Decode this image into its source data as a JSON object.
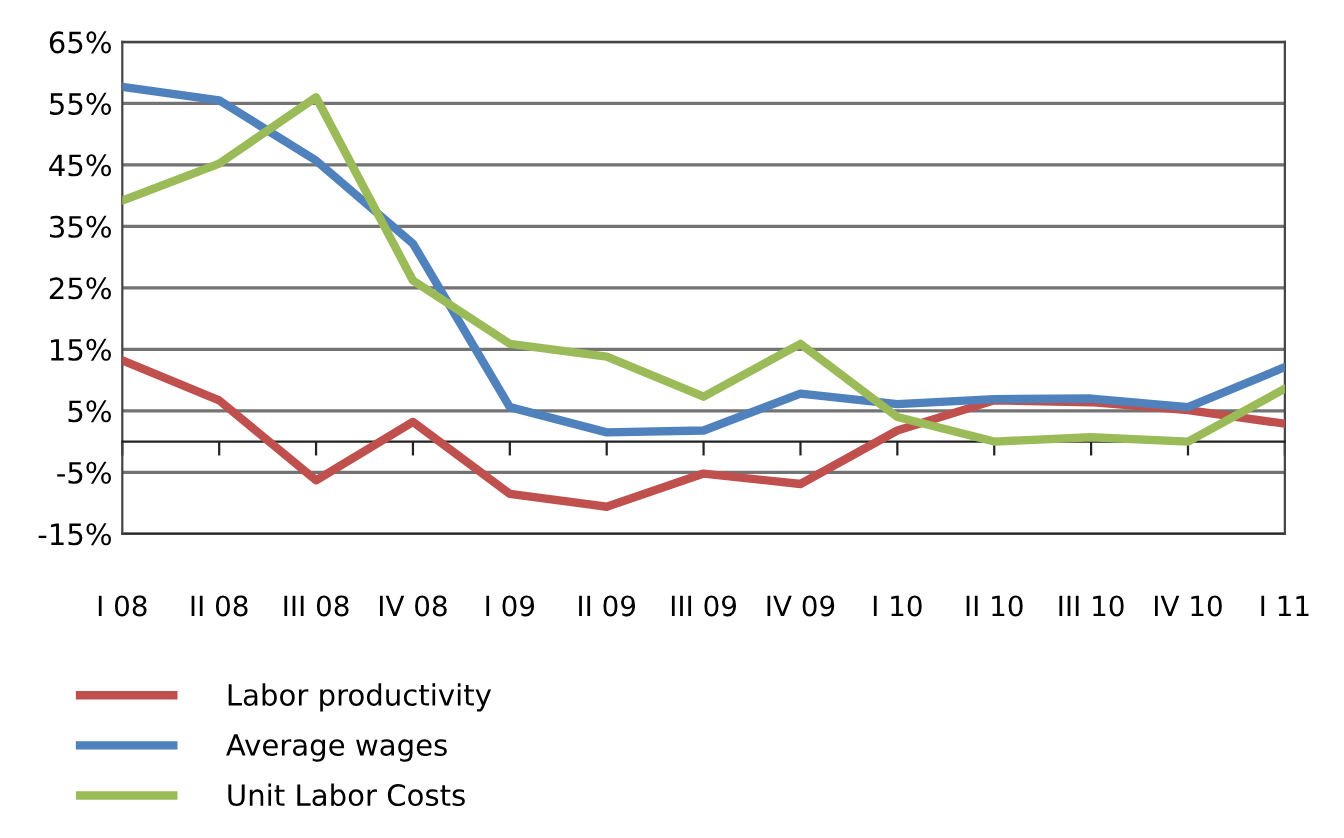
{
  "chart_data": {
    "type": "line",
    "categories": [
      "I 08",
      "II 08",
      "III 08",
      "IV 08",
      "I 09",
      "II 09",
      "III 09",
      "IV 09",
      "I 10",
      "II 10",
      "III 10",
      "IV 10",
      "I 11"
    ],
    "series": [
      {
        "name": "Labor productivity",
        "color": "#c0504d",
        "values": [
          13.2,
          6.7,
          -6.3,
          3.2,
          -8.5,
          -10.6,
          -5.2,
          -6.9,
          1.8,
          6.7,
          6.4,
          5.1,
          2.9
        ]
      },
      {
        "name": "Average wages",
        "color": "#4f81bd",
        "values": [
          57.7,
          55.5,
          45.7,
          32.2,
          5.6,
          1.5,
          1.8,
          7.8,
          6.1,
          6.9,
          7.0,
          5.6,
          12.1
        ]
      },
      {
        "name": "Unit Labor Costs",
        "color": "#9bbb59",
        "values": [
          39.2,
          45.2,
          56.0,
          26.2,
          15.9,
          13.8,
          7.3,
          15.9,
          4.0,
          0.0,
          0.7,
          0.0,
          8.6
        ]
      }
    ],
    "ylim": [
      -15,
      65
    ],
    "yticks": [
      {
        "value": -15,
        "label": "-15%"
      },
      {
        "value": -5,
        "label": "-5%"
      },
      {
        "value": 5,
        "label": "5%"
      },
      {
        "value": 15,
        "label": "15%"
      },
      {
        "value": 25,
        "label": "25%"
      },
      {
        "value": 35,
        "label": "35%"
      },
      {
        "value": 45,
        "label": "45%"
      },
      {
        "value": 55,
        "label": "55%"
      },
      {
        "value": 65,
        "label": "65%"
      }
    ],
    "grid": "y",
    "legend": "bottom left",
    "marker": "none",
    "line_style": "solid"
  }
}
